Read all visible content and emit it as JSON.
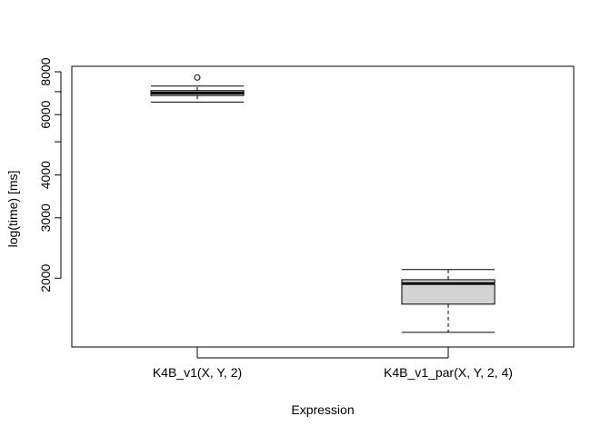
{
  "chart_data": {
    "type": "boxplot",
    "title": "",
    "xlabel": "Expression",
    "ylabel": "log(time) [ms]",
    "y_scale": "log",
    "ylim": [
      1260,
      8300
    ],
    "y_ticks": [
      2000,
      3000,
      4000,
      6000,
      8000
    ],
    "y_tick_labels": [
      "2000",
      "3000",
      "4000",
      "6000",
      "8000"
    ],
    "y_minor_ticks": [
      5000,
      7000
    ],
    "grid": false,
    "categories": [
      "K4B_v1(X, Y, 2)",
      "K4B_v1_par(X, Y, 2, 4)"
    ],
    "boxes": [
      {
        "whisker_low": 6530,
        "q1": 6820,
        "median": 6940,
        "q3": 7050,
        "whisker_high": 7270,
        "outliers": [
          7700
        ],
        "fill": "#d3d3d3"
      },
      {
        "whisker_low": 1390,
        "q1": 1680,
        "median": 1930,
        "q3": 1980,
        "whisker_high": 2120,
        "outliers": [],
        "fill": "#d3d3d3"
      }
    ]
  }
}
